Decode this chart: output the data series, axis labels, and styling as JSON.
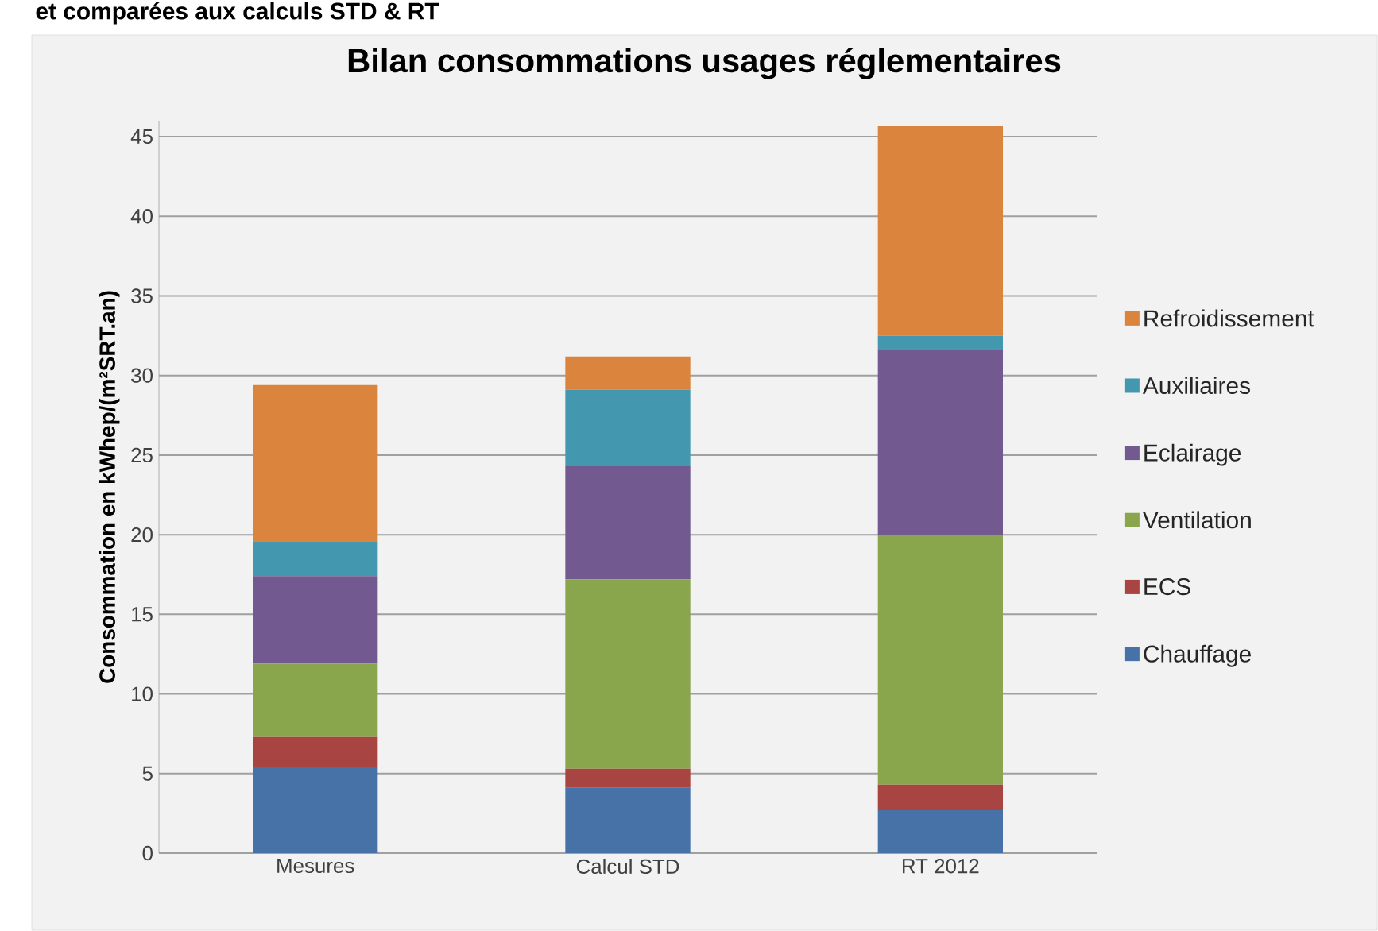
{
  "chart_data": {
    "type": "bar",
    "title": "Bilan consommations usages réglementaires",
    "ylabel": "Consommation  en kWhep/(m²SRT.an)",
    "annotations": [
      "et comparées aux calculs STD & RT"
    ],
    "categories": [
      "Mesures",
      "Calcul STD",
      "RT 2012"
    ],
    "stacked": true,
    "series": [
      {
        "name": "Chauffage",
        "color": "#4672a8",
        "values": [
          5.4,
          4.1,
          2.7
        ]
      },
      {
        "name": "ECS",
        "color": "#a84442",
        "values": [
          1.9,
          1.2,
          1.6
        ]
      },
      {
        "name": "Ventilation",
        "color": "#89a64d",
        "values": [
          4.6,
          11.9,
          15.7
        ]
      },
      {
        "name": "Eclairage",
        "color": "#72598f",
        "values": [
          5.5,
          7.1,
          11.6
        ]
      },
      {
        "name": "Auxiliaires",
        "color": "#4398b0",
        "values": [
          2.2,
          4.8,
          0.9
        ]
      },
      {
        "name": "Refroidissement",
        "color": "#db843d",
        "values": [
          9.8,
          2.1,
          13.2
        ]
      }
    ],
    "ylim": [
      0,
      46
    ],
    "yticks": [
      0,
      5,
      10,
      15,
      20,
      25,
      30,
      35,
      40,
      45
    ],
    "grid": "y",
    "legend": "right"
  }
}
